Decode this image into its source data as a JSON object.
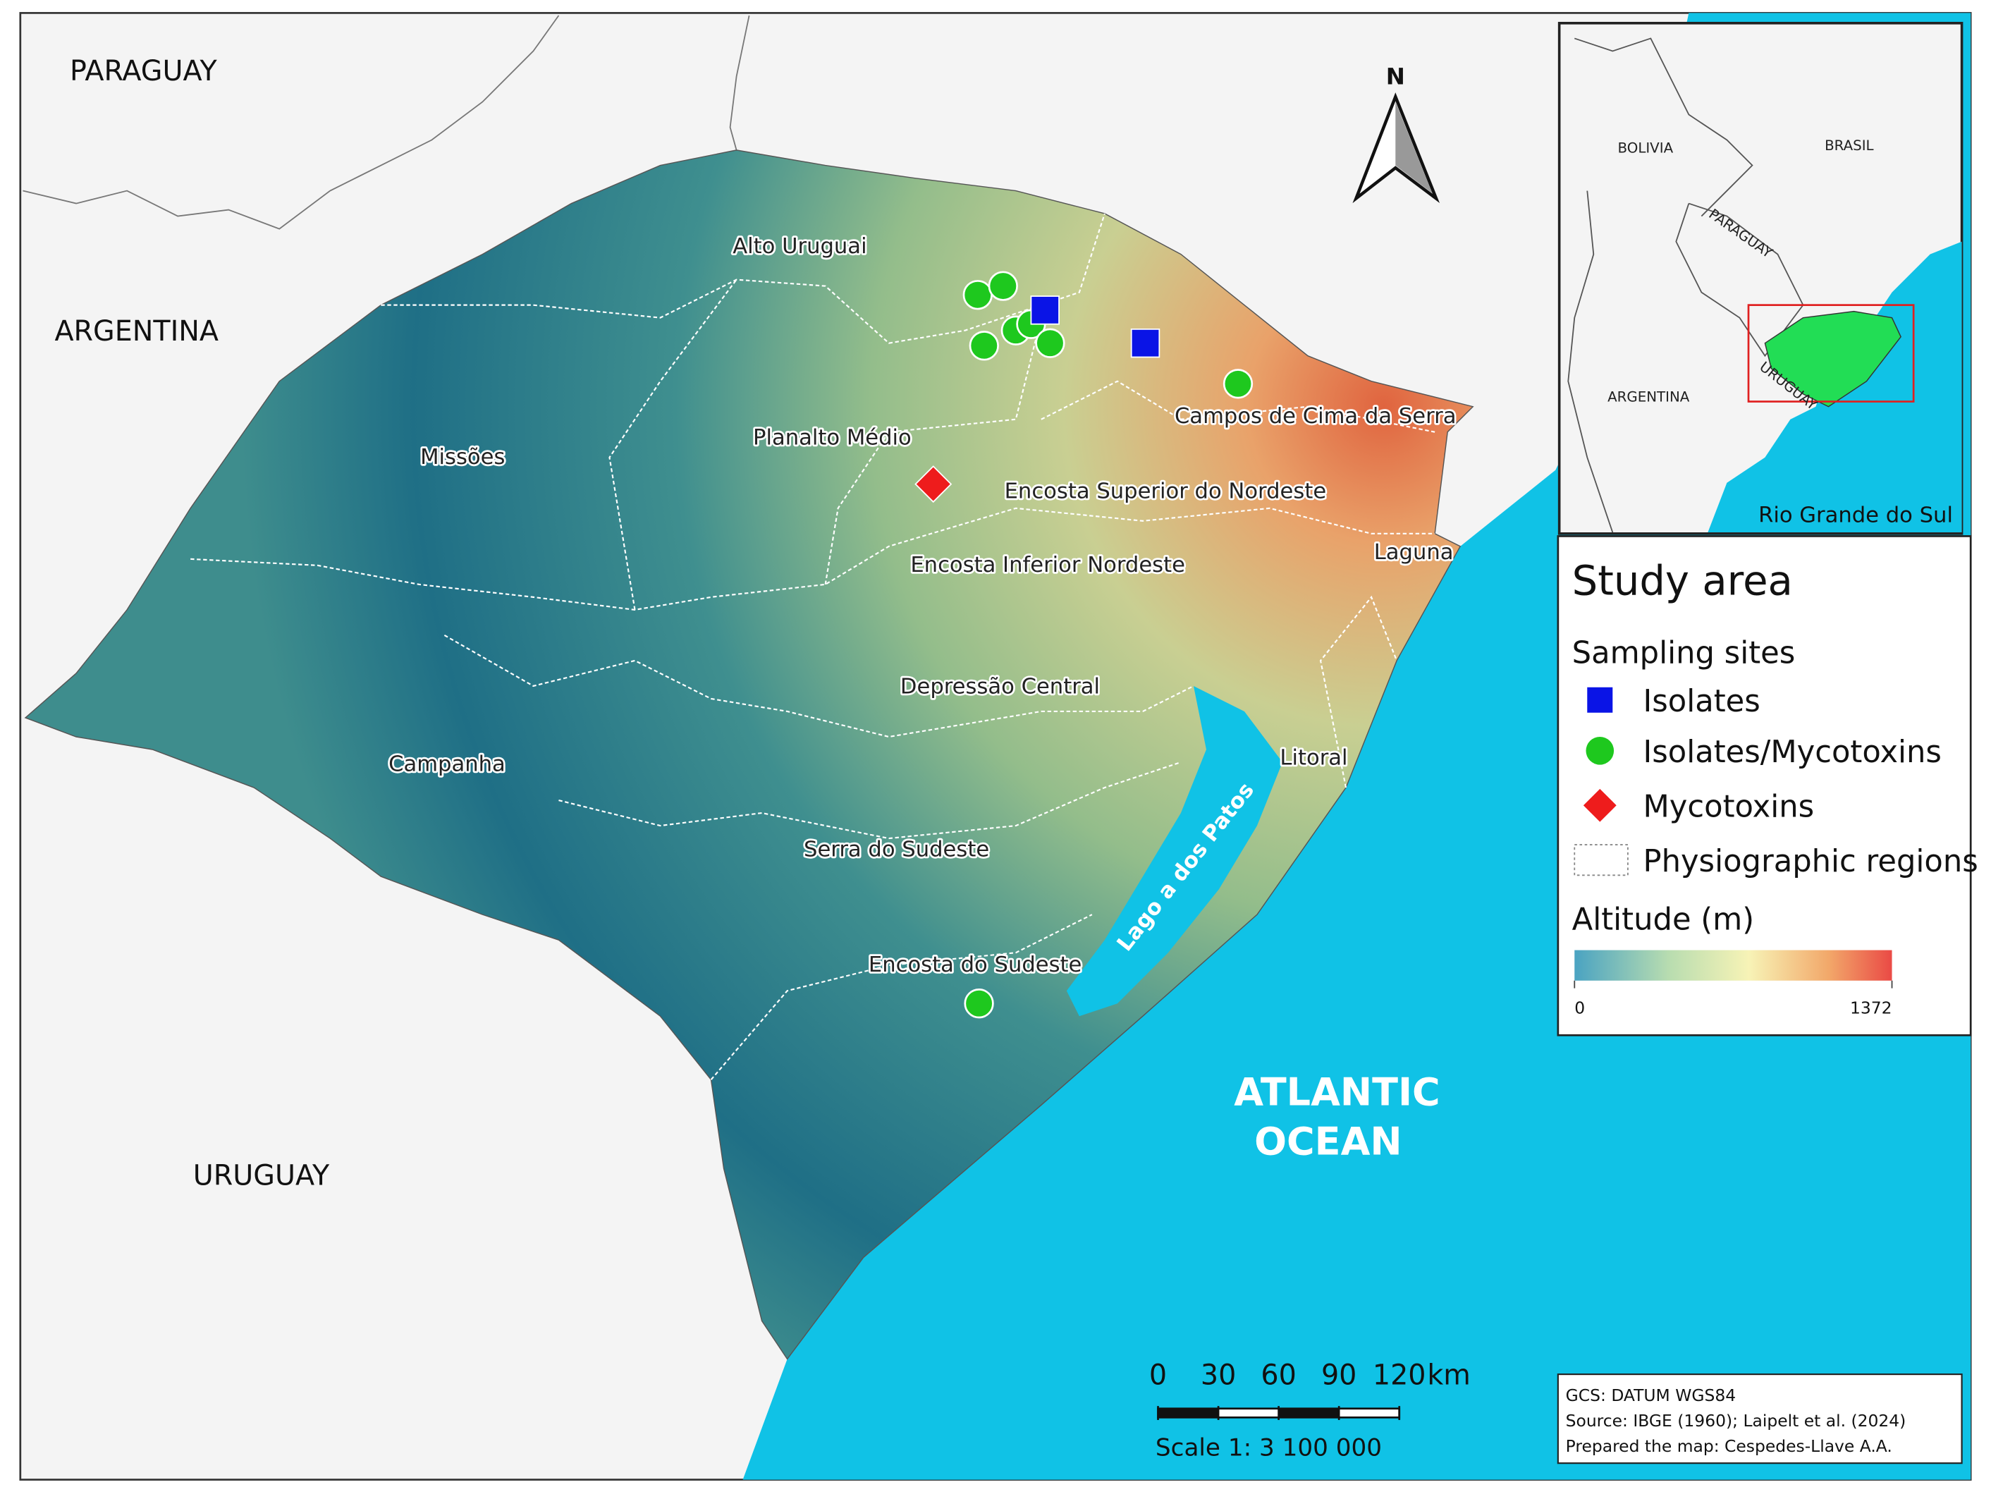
{
  "map": {
    "countries": [
      "PARAGUAY",
      "ARGENTINA",
      "URUGUAY"
    ],
    "ocean_label": [
      "ATLANTIC",
      "OCEAN"
    ],
    "regions": [
      "Alto Uruguai",
      "Planalto Médio",
      "Missões",
      "Campos de Cima da Serra",
      "Encosta Superior do Nordeste",
      "Encosta Inferior Nordeste",
      "Laguna",
      "Depressão Central",
      "Campanha",
      "Litoral",
      "Serra do Sudeste",
      "Encosta do Sudeste"
    ],
    "lagoon": "Lago a dos Patos",
    "north": "N"
  },
  "inset": {
    "labels": [
      "BOLIVIA",
      "BRASIL",
      "PARAGUAY",
      "ARGENTINA",
      "URUGUAY"
    ],
    "state": "Rio Grande do Sul"
  },
  "legend": {
    "title": "Study area",
    "sampling_title": "Sampling sites",
    "items": [
      "Isolates",
      "Isolates/Mycotoxins",
      "Mycotoxins",
      "Physiographic regions"
    ],
    "altitude_title": "Altitude (m)",
    "altitude_range": [
      0,
      1372
    ]
  },
  "scale_bar": {
    "ticks": [
      0,
      30,
      60,
      90,
      120
    ],
    "unit": "km",
    "ratio": "Scale 1: 3 100 000"
  },
  "credits": [
    "GCS: DATUM WGS84",
    "Source: IBGE (1960); Laipelt et al. (2024)",
    "Prepared the map: Cespedes-Llave A.A."
  ]
}
